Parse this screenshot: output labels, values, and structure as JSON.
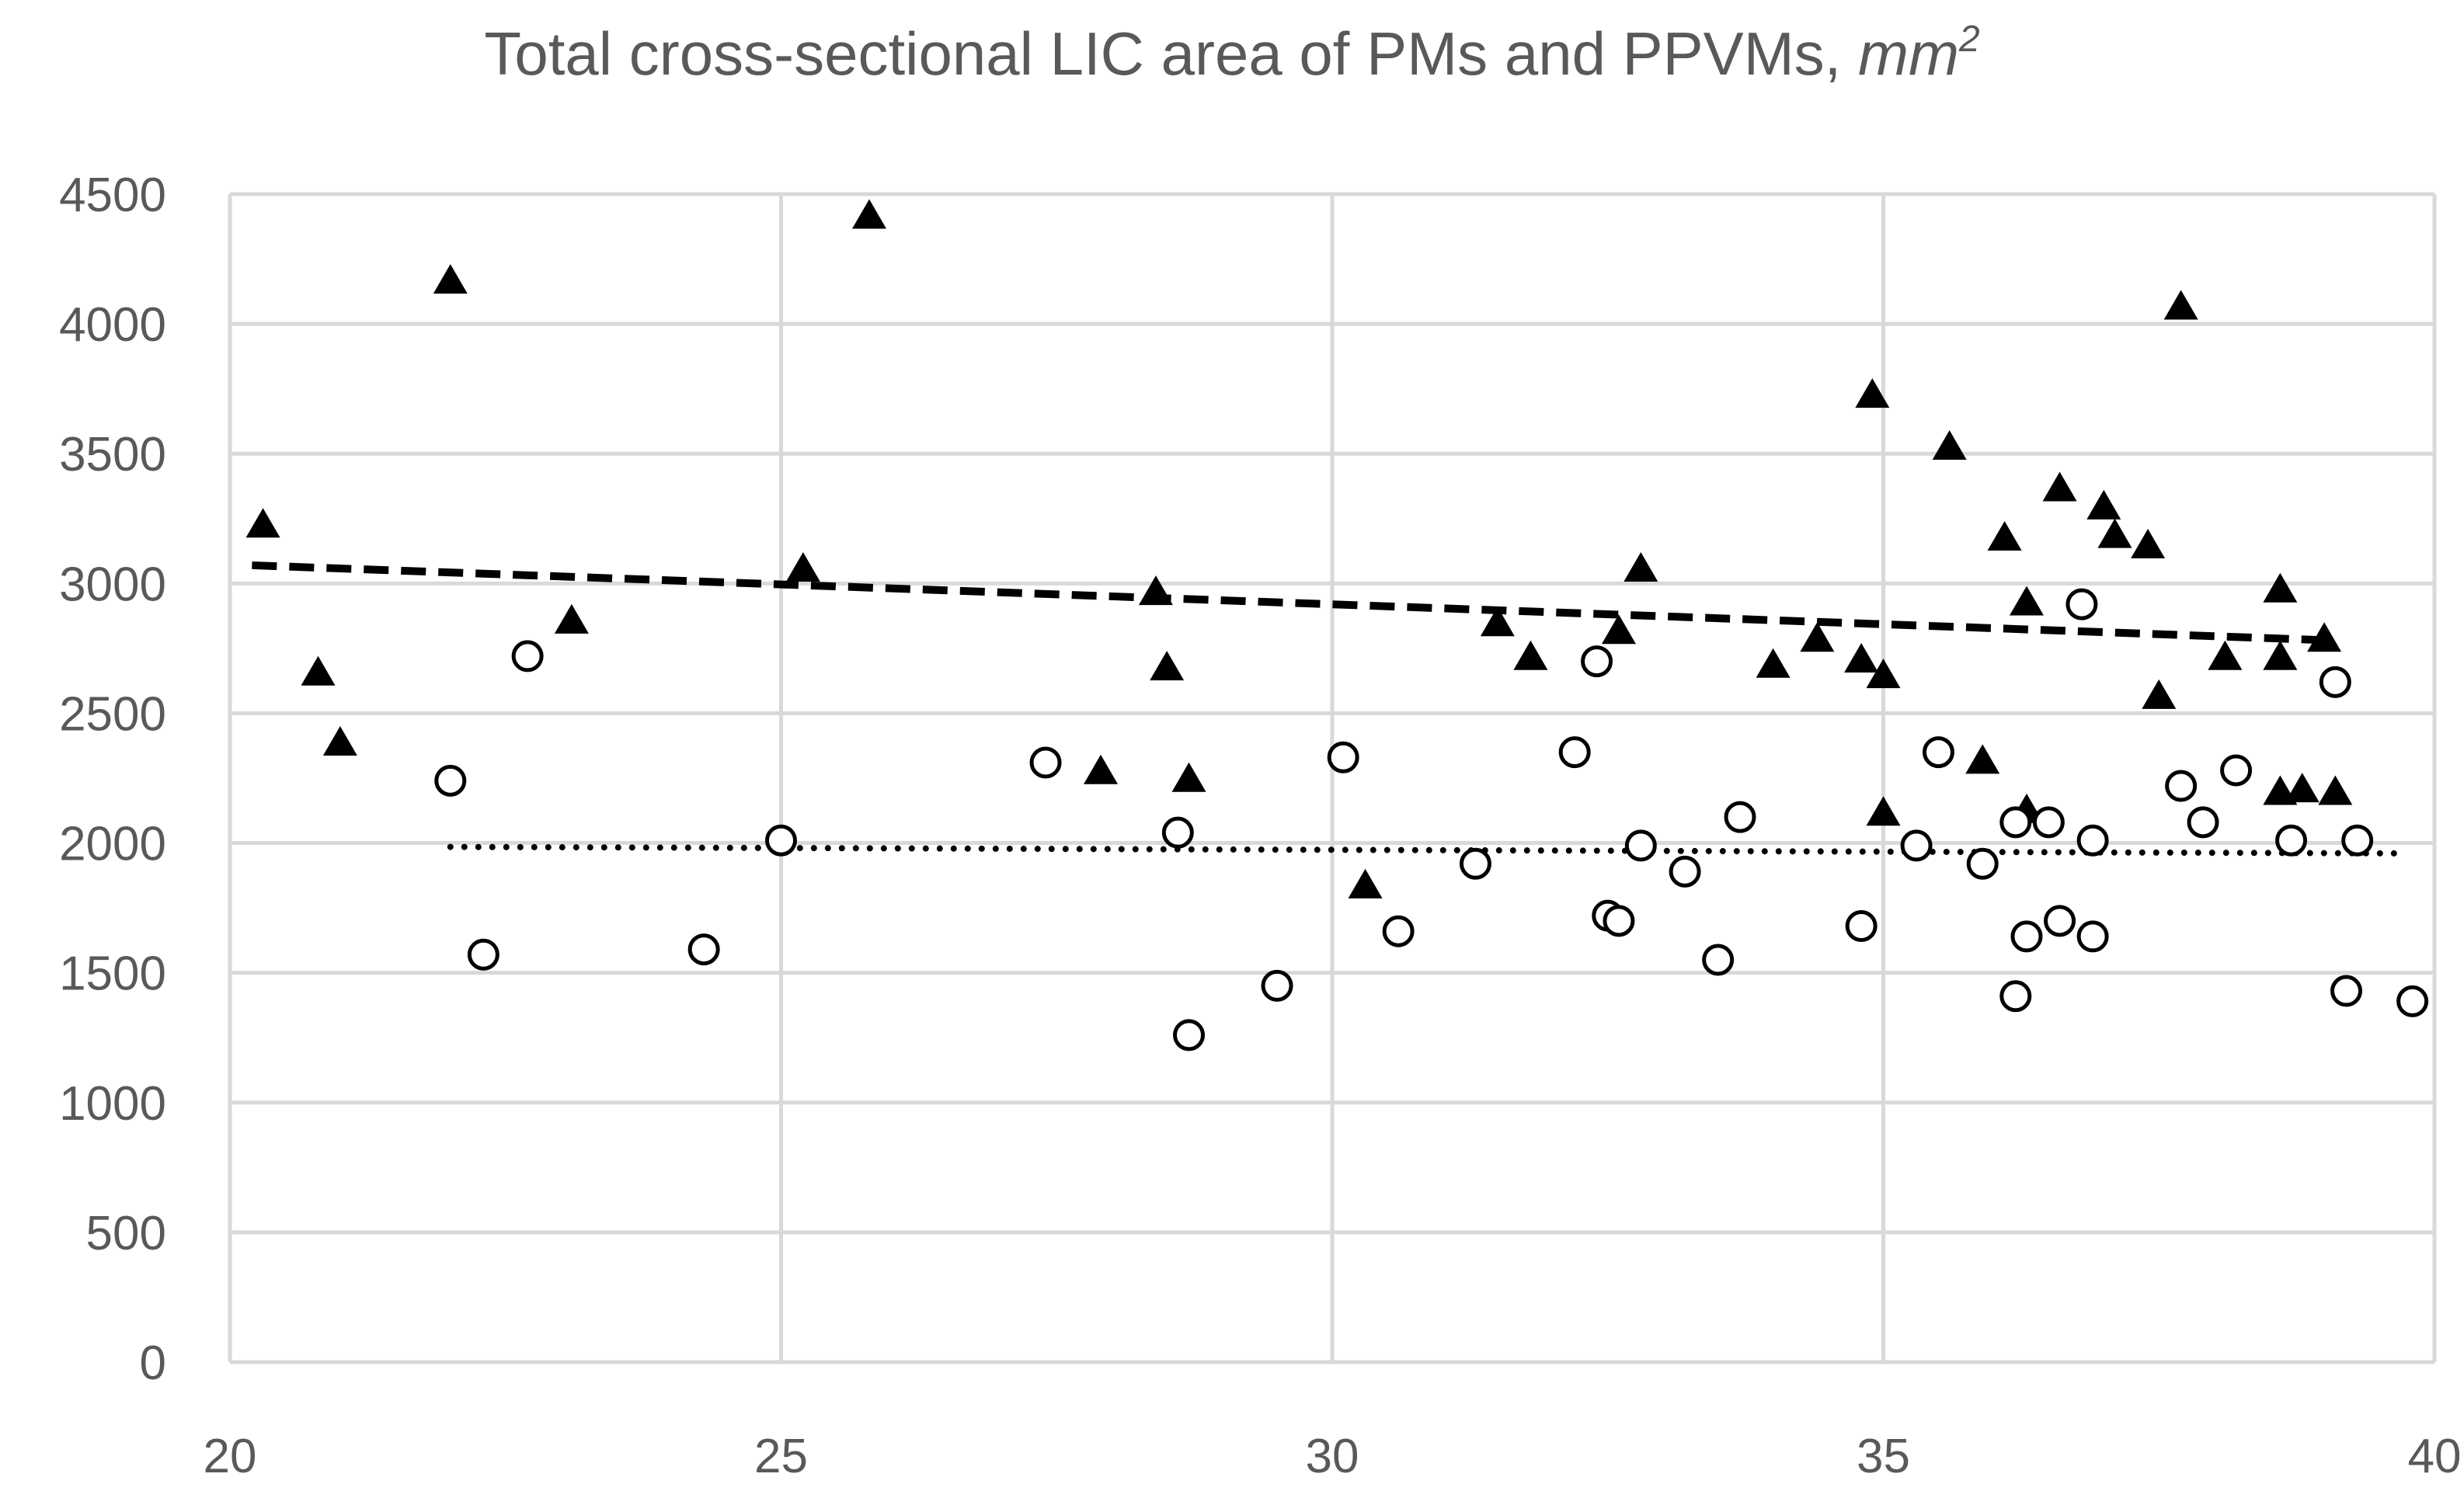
{
  "chart_data": {
    "type": "scatter",
    "title": "Total cross-sectional LIC area of PMs and PPVMs, ",
    "title_unit": "mm",
    "title_unit_superscript": "2",
    "xlabel": "",
    "ylabel": "",
    "xlim": [
      20,
      40
    ],
    "ylim": [
      0,
      4500
    ],
    "x_ticks": [
      20,
      25,
      30,
      35,
      40
    ],
    "y_ticks": [
      0,
      500,
      1000,
      1500,
      2000,
      2500,
      3000,
      3500,
      4000,
      4500
    ],
    "grid": true,
    "legend": "none",
    "series": [
      {
        "name": "triangles",
        "marker": "triangle",
        "color": "#000000",
        "points": [
          [
            20.3,
            3220
          ],
          [
            20.8,
            2650
          ],
          [
            21.0,
            2380
          ],
          [
            22.0,
            4160
          ],
          [
            23.1,
            2850
          ],
          [
            25.2,
            3050
          ],
          [
            25.8,
            4410
          ],
          [
            27.9,
            2270
          ],
          [
            28.4,
            2960
          ],
          [
            28.5,
            2670
          ],
          [
            28.7,
            2240
          ],
          [
            30.3,
            1830
          ],
          [
            31.5,
            2840
          ],
          [
            31.8,
            2710
          ],
          [
            32.6,
            2810
          ],
          [
            32.8,
            3050
          ],
          [
            34.0,
            2680
          ],
          [
            34.4,
            2780
          ],
          [
            34.8,
            2700
          ],
          [
            34.9,
            3720
          ],
          [
            35.0,
            2640
          ],
          [
            35.0,
            2110
          ],
          [
            35.6,
            3520
          ],
          [
            35.9,
            2310
          ],
          [
            36.1,
            3170
          ],
          [
            36.3,
            2920
          ],
          [
            36.3,
            2120
          ],
          [
            36.6,
            3360
          ],
          [
            37.0,
            3290
          ],
          [
            37.1,
            3180
          ],
          [
            37.4,
            3140
          ],
          [
            37.5,
            2560
          ],
          [
            37.7,
            4060
          ],
          [
            38.1,
            2710
          ],
          [
            38.6,
            2970
          ],
          [
            38.6,
            2710
          ],
          [
            38.6,
            2190
          ],
          [
            38.8,
            2200
          ],
          [
            39.0,
            2780
          ],
          [
            39.1,
            2190
          ]
        ]
      },
      {
        "name": "circles",
        "marker": "circle",
        "color": "#000000",
        "points": [
          [
            22.0,
            2240
          ],
          [
            22.3,
            1570
          ],
          [
            22.7,
            2720
          ],
          [
            24.3,
            1590
          ],
          [
            25.0,
            2010
          ],
          [
            27.4,
            2310
          ],
          [
            28.6,
            2040
          ],
          [
            28.7,
            1260
          ],
          [
            29.5,
            1450
          ],
          [
            30.1,
            2330
          ],
          [
            30.6,
            1660
          ],
          [
            31.3,
            1920
          ],
          [
            32.2,
            2350
          ],
          [
            32.4,
            2700
          ],
          [
            32.5,
            1720
          ],
          [
            32.6,
            1700
          ],
          [
            32.8,
            1990
          ],
          [
            33.2,
            1890
          ],
          [
            33.5,
            1550
          ],
          [
            33.7,
            2100
          ],
          [
            34.8,
            1680
          ],
          [
            35.3,
            1990
          ],
          [
            35.5,
            2350
          ],
          [
            35.9,
            1920
          ],
          [
            36.2,
            2080
          ],
          [
            36.2,
            1410
          ],
          [
            36.3,
            1640
          ],
          [
            36.5,
            2080
          ],
          [
            36.6,
            1700
          ],
          [
            36.8,
            2920
          ],
          [
            36.9,
            1640
          ],
          [
            36.9,
            2010
          ],
          [
            37.7,
            2220
          ],
          [
            37.9,
            2080
          ],
          [
            38.2,
            2280
          ],
          [
            38.7,
            2010
          ],
          [
            39.1,
            2620
          ],
          [
            39.2,
            1430
          ],
          [
            39.3,
            2010
          ],
          [
            39.8,
            1390
          ]
        ]
      }
    ],
    "trendlines": [
      {
        "name": "triangles-trend",
        "style": "dashed",
        "x": [
          20.2,
          39.1
        ],
        "y": [
          3070,
          2780
        ]
      },
      {
        "name": "circles-trend",
        "style": "dotted",
        "x": [
          22.0,
          39.7
        ],
        "y": [
          1985,
          1960
        ]
      }
    ]
  }
}
